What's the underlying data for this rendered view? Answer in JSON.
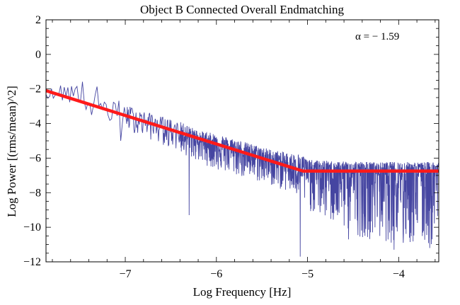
{
  "chart_data": {
    "type": "line",
    "title": "Object B Connected Overall Endmatching",
    "xlabel": "Log Frequency [Hz]",
    "ylabel": "Log Power [(rms/mean)^2]",
    "xlim": [
      -7.87,
      -3.56
    ],
    "ylim": [
      -12,
      2
    ],
    "x_ticks": [
      -7,
      -6,
      -5,
      -4
    ],
    "x_tick_labels": [
      "−7",
      "−6",
      "−5",
      "−4"
    ],
    "y_ticks": [
      -12,
      -10,
      -8,
      -6,
      -4,
      -2,
      0,
      2
    ],
    "y_tick_labels": [
      "−12",
      "−10",
      "−8",
      "−6",
      "−4",
      "−2",
      "0",
      "2"
    ],
    "grid": false,
    "annotation": "α = − 1.59",
    "series": [
      {
        "kind": "power-spectrum",
        "color": "#3b3b9c",
        "envelope_x": [
          -7.87,
          -7.6,
          -7.4,
          -7.2,
          -7.0,
          -6.8,
          -6.6,
          -6.4,
          -6.2,
          -6.0,
          -5.8,
          -5.6,
          -5.4,
          -5.2,
          -5.05,
          -5.0,
          -4.8,
          -4.6,
          -4.4,
          -4.2,
          -4.0,
          -3.8,
          -3.56
        ],
        "upper_env": [
          -2.1,
          -1.45,
          -1.5,
          -2.2,
          -2.9,
          -3.3,
          -3.6,
          -3.9,
          -4.4,
          -4.6,
          -4.9,
          -5.2,
          -5.5,
          -5.7,
          -5.8,
          -6.1,
          -6.15,
          -6.2,
          -6.2,
          -6.25,
          -6.2,
          -6.25,
          -6.2
        ],
        "mean_env": [
          -2.3,
          -2.3,
          -2.8,
          -3.3,
          -3.6,
          -3.9,
          -4.2,
          -4.6,
          -5.0,
          -5.3,
          -5.6,
          -5.9,
          -6.2,
          -6.5,
          -6.7,
          -6.75,
          -6.8,
          -6.8,
          -6.8,
          -6.8,
          -6.8,
          -6.8,
          -6.8
        ],
        "lower_env": [
          -2.5,
          -2.9,
          -3.4,
          -3.9,
          -4.3,
          -4.8,
          -5.2,
          -5.7,
          -6.2,
          -6.7,
          -7.0,
          -7.3,
          -7.6,
          -8.0,
          -8.5,
          -9.0,
          -9.6,
          -10.2,
          -10.6,
          -10.8,
          -11.0,
          -11.1,
          -11.2
        ],
        "spikes": [
          {
            "x": -6.3,
            "y": -9.3
          },
          {
            "x": -5.08,
            "y": -11.7
          },
          {
            "x": -7.37,
            "y": -3.5
          },
          {
            "x": -7.05,
            "y": -5.0
          },
          {
            "x": -4.55,
            "y": -10.7
          },
          {
            "x": -4.05,
            "y": -11.3
          },
          {
            "x": -3.66,
            "y": -11.2
          },
          {
            "x": -3.95,
            "y": -10.9
          }
        ]
      },
      {
        "kind": "broken-power-law-fit",
        "color": "#ff1a1a",
        "x": [
          -7.87,
          -5.05,
          -3.56
        ],
        "y": [
          -2.1,
          -6.75,
          -6.75
        ]
      }
    ]
  }
}
